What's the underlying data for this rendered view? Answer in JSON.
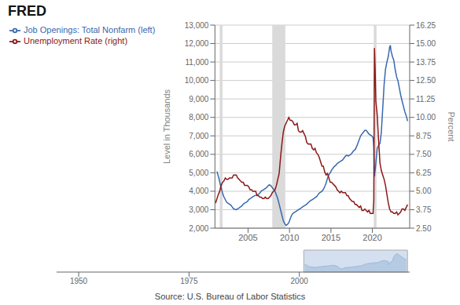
{
  "chart_data": [
    {
      "type": "line",
      "annotations": [
        "FRED",
        "Source: U.S. Bureau of Labor Statistics"
      ],
      "ylabel": "Level in Thousands",
      "y2label": "Percent",
      "xlim": [
        2001.0,
        2024.5
      ],
      "xticks": [
        2005,
        2010,
        2015,
        2020
      ],
      "ylim": [
        2000,
        13000
      ],
      "yticks": [
        {
          "value": 2000,
          "label": "2,000"
        },
        {
          "value": 3000,
          "label": "3,000"
        },
        {
          "value": 4000,
          "label": "4,000"
        },
        {
          "value": 5000,
          "label": "5,000"
        },
        {
          "value": 6000,
          "label": "6,000"
        },
        {
          "value": 7000,
          "label": "7,000"
        },
        {
          "value": 8000,
          "label": "8,000"
        },
        {
          "value": 9000,
          "label": "9,000"
        },
        {
          "value": 10000,
          "label": "10,000"
        },
        {
          "value": 11000,
          "label": "11,000"
        },
        {
          "value": 12000,
          "label": "12,000"
        },
        {
          "value": 13000,
          "label": "13,000"
        }
      ],
      "y2lim": [
        2.5,
        16.25
      ],
      "y2ticks": [
        {
          "value": 2.5,
          "label": "2.50"
        },
        3.75,
        {
          "value": 5.0,
          "label": "5.00"
        },
        6.25,
        {
          "value": 7.5,
          "label": "7.50"
        },
        8.75,
        {
          "value": 10.0,
          "label": "10.00"
        },
        11.25,
        {
          "value": 12.5,
          "label": "12.50"
        },
        13.75,
        {
          "value": 15.0,
          "label": "15.00"
        },
        16.25
      ],
      "grid": true,
      "legend": "upper left",
      "shaded_ranges": [
        {
          "from": 2001.58,
          "to": 2001.92,
          "color": "#DADADA"
        },
        {
          "from": 2007.92,
          "to": 2009.5,
          "color": "#DADADA"
        },
        {
          "from": 2020.17,
          "to": 2020.5,
          "color": "#DADADA"
        }
      ],
      "series": [
        {
          "name": "Job Openings: Total Nonfarm (left)",
          "color": "#3868B0",
          "x": [
            2001.25,
            2001.42,
            2001.58,
            2001.75,
            2001.92,
            2002.08,
            2002.25,
            2002.42,
            2002.58,
            2002.75,
            2002.92,
            2003.08,
            2003.25,
            2003.42,
            2003.58,
            2003.75,
            2003.92,
            2004.08,
            2004.25,
            2004.42,
            2004.58,
            2004.75,
            2004.92,
            2005.08,
            2005.25,
            2005.42,
            2005.58,
            2005.75,
            2005.92,
            2006.08,
            2006.25,
            2006.42,
            2006.58,
            2006.75,
            2006.92,
            2007.08,
            2007.25,
            2007.42,
            2007.58,
            2007.75,
            2007.92,
            2008.08,
            2008.25,
            2008.42,
            2008.58,
            2008.75,
            2008.92,
            2009.08,
            2009.25,
            2009.42,
            2009.58,
            2009.75,
            2009.92,
            2010.08,
            2010.25,
            2010.42,
            2010.58,
            2010.75,
            2010.92,
            2011.08,
            2011.25,
            2011.42,
            2011.58,
            2011.75,
            2011.92,
            2012.08,
            2012.25,
            2012.42,
            2012.58,
            2012.75,
            2012.92,
            2013.08,
            2013.25,
            2013.42,
            2013.58,
            2013.75,
            2013.92,
            2014.08,
            2014.25,
            2014.42,
            2014.58,
            2014.75,
            2014.92,
            2015.08,
            2015.25,
            2015.42,
            2015.58,
            2015.75,
            2015.92,
            2016.08,
            2016.25,
            2016.42,
            2016.58,
            2016.75,
            2016.92,
            2017.08,
            2017.25,
            2017.42,
            2017.58,
            2017.75,
            2017.92,
            2018.08,
            2018.25,
            2018.42,
            2018.58,
            2018.75,
            2018.92,
            2019.08,
            2019.25,
            2019.42,
            2019.58,
            2019.75,
            2019.92,
            2020.08,
            2020.17,
            2020.25,
            2020.42,
            2020.58,
            2020.75,
            2020.92,
            2021.08,
            2021.25,
            2021.42,
            2021.58,
            2021.75,
            2021.92,
            2022.08,
            2022.17,
            2022.25,
            2022.42,
            2022.58,
            2022.75,
            2022.92,
            2023.08,
            2023.25,
            2023.42,
            2023.58,
            2023.75,
            2023.92,
            2024.08,
            2024.25
          ],
          "values": [
            5067,
            4800,
            4500,
            4200,
            3900,
            3700,
            3550,
            3400,
            3350,
            3300,
            3250,
            3150,
            3050,
            3020,
            3000,
            3050,
            3100,
            3150,
            3200,
            3300,
            3350,
            3400,
            3450,
            3550,
            3600,
            3650,
            3700,
            3750,
            3780,
            3800,
            3830,
            3900,
            4000,
            4050,
            4100,
            4150,
            4200,
            4300,
            4350,
            4300,
            4200,
            4100,
            4000,
            3800,
            3600,
            3300,
            3000,
            2700,
            2400,
            2250,
            2150,
            2200,
            2300,
            2500,
            2700,
            2800,
            2850,
            2900,
            2950,
            3000,
            3050,
            3100,
            3150,
            3200,
            3250,
            3300,
            3380,
            3450,
            3500,
            3550,
            3600,
            3650,
            3700,
            3800,
            3900,
            3950,
            4000,
            4100,
            4250,
            4450,
            4700,
            4900,
            5000,
            5150,
            5250,
            5350,
            5400,
            5500,
            5550,
            5600,
            5650,
            5700,
            5800,
            5900,
            5950,
            5900,
            5950,
            6000,
            6100,
            6200,
            6250,
            6400,
            6600,
            6800,
            7000,
            7100,
            7200,
            7300,
            7300,
            7200,
            7100,
            7050,
            7000,
            6900,
            6400,
            4800,
            5500,
            6300,
            6500,
            6600,
            7200,
            8500,
            9800,
            10600,
            11000,
            11300,
            11800,
            11900,
            11600,
            11300,
            11100,
            10600,
            10200,
            10000,
            9600,
            9200,
            8900,
            8600,
            8300,
            8100,
            7800
          ]
        },
        {
          "name": "Unemployment Rate (right)",
          "color": "#8B1818",
          "axis": "y2",
          "x": [
            2001.08,
            2001.25,
            2001.42,
            2001.58,
            2001.75,
            2001.92,
            2002.08,
            2002.25,
            2002.42,
            2002.58,
            2002.75,
            2002.92,
            2003.08,
            2003.25,
            2003.42,
            2003.58,
            2003.75,
            2003.92,
            2004.08,
            2004.25,
            2004.42,
            2004.58,
            2004.75,
            2004.92,
            2005.08,
            2005.25,
            2005.42,
            2005.58,
            2005.75,
            2005.92,
            2006.08,
            2006.25,
            2006.42,
            2006.58,
            2006.75,
            2006.92,
            2007.08,
            2007.25,
            2007.42,
            2007.58,
            2007.75,
            2007.92,
            2008.08,
            2008.25,
            2008.42,
            2008.58,
            2008.75,
            2008.92,
            2009.08,
            2009.25,
            2009.42,
            2009.58,
            2009.75,
            2009.92,
            2010.08,
            2010.25,
            2010.42,
            2010.58,
            2010.75,
            2010.92,
            2011.08,
            2011.25,
            2011.42,
            2011.58,
            2011.75,
            2011.92,
            2012.08,
            2012.25,
            2012.42,
            2012.58,
            2012.75,
            2012.92,
            2013.08,
            2013.25,
            2013.42,
            2013.58,
            2013.75,
            2013.92,
            2014.08,
            2014.25,
            2014.42,
            2014.58,
            2014.75,
            2014.92,
            2015.08,
            2015.25,
            2015.42,
            2015.58,
            2015.75,
            2015.92,
            2016.08,
            2016.25,
            2016.42,
            2016.58,
            2016.75,
            2016.92,
            2017.08,
            2017.25,
            2017.42,
            2017.58,
            2017.75,
            2017.92,
            2018.08,
            2018.25,
            2018.42,
            2018.58,
            2018.75,
            2018.92,
            2019.08,
            2019.25,
            2019.42,
            2019.58,
            2019.75,
            2019.92,
            2020.08,
            2020.17,
            2020.25,
            2020.33,
            2020.42,
            2020.58,
            2020.75,
            2020.92,
            2021.08,
            2021.25,
            2021.42,
            2021.58,
            2021.75,
            2021.92,
            2022.08,
            2022.25,
            2022.42,
            2022.58,
            2022.75,
            2022.92,
            2023.08,
            2023.25,
            2023.42,
            2023.58,
            2023.75,
            2023.92,
            2024.08,
            2024.25
          ],
          "values": [
            4.2,
            4.5,
            4.8,
            5.0,
            5.4,
            5.6,
            5.7,
            5.9,
            5.8,
            5.8,
            5.9,
            5.9,
            5.9,
            6.1,
            6.1,
            6.1,
            5.9,
            5.8,
            5.7,
            5.6,
            5.6,
            5.4,
            5.4,
            5.4,
            5.3,
            5.1,
            5.1,
            5.0,
            5.0,
            5.0,
            4.7,
            4.7,
            4.6,
            4.6,
            4.5,
            4.5,
            4.6,
            4.5,
            4.5,
            4.6,
            4.7,
            4.9,
            5.0,
            5.1,
            5.4,
            5.8,
            6.2,
            7.3,
            8.2,
            9.0,
            9.4,
            9.6,
            9.8,
            10.0,
            9.8,
            9.8,
            9.7,
            9.5,
            9.5,
            9.6,
            9.1,
            9.0,
            9.0,
            9.1,
            8.9,
            8.7,
            8.3,
            8.2,
            8.2,
            8.2,
            7.9,
            7.8,
            7.9,
            7.6,
            7.5,
            7.3,
            7.0,
            6.7,
            6.7,
            6.3,
            6.1,
            6.2,
            5.9,
            5.6,
            5.6,
            5.5,
            5.4,
            5.3,
            5.1,
            5.0,
            4.9,
            5.0,
            4.9,
            4.9,
            4.9,
            4.7,
            4.7,
            4.5,
            4.4,
            4.3,
            4.3,
            4.1,
            4.1,
            4.0,
            3.9,
            4.0,
            3.7,
            3.7,
            3.8,
            3.7,
            3.6,
            3.7,
            3.5,
            3.5,
            3.5,
            4.4,
            14.7,
            13.3,
            11.1,
            10.2,
            8.4,
            6.9,
            6.4,
            6.1,
            5.8,
            5.4,
            4.8,
            4.2,
            3.8,
            3.6,
            3.6,
            3.5,
            3.5,
            3.6,
            3.4,
            3.5,
            3.6,
            3.8,
            3.8,
            3.7,
            3.9,
            4.1
          ]
        }
      ]
    },
    {
      "type": "area",
      "color": "#9AB8D8",
      "xlim": [
        1945,
        2025
      ],
      "xticks": [
        1950,
        1975,
        2000
      ],
      "ylim": [
        0,
        14000
      ],
      "tick_labels": "x",
      "shaded_ranges": [
        {
          "from": 2001.0,
          "to": 2024.5,
          "color": "#B8CCE4"
        }
      ],
      "x": [
        2001.25,
        2001.42,
        2001.58,
        2001.75,
        2001.92,
        2002.08,
        2002.25,
        2002.42,
        2002.58,
        2002.75,
        2002.92,
        2003.08,
        2003.25,
        2003.42,
        2003.58,
        2003.75,
        2003.92,
        2004.08,
        2004.25,
        2004.42,
        2004.58,
        2004.75,
        2004.92,
        2005.08,
        2005.25,
        2005.42,
        2005.58,
        2005.75,
        2005.92,
        2006.08,
        2006.25,
        2006.42,
        2006.58,
        2006.75,
        2006.92,
        2007.08,
        2007.25,
        2007.42,
        2007.58,
        2007.75,
        2007.92,
        2008.08,
        2008.25,
        2008.42,
        2008.58,
        2008.75,
        2008.92,
        2009.08,
        2009.25,
        2009.42,
        2009.58,
        2009.75,
        2009.92,
        2010.08,
        2010.25,
        2010.42,
        2010.58,
        2010.75,
        2010.92,
        2011.08,
        2011.25,
        2011.42,
        2011.58,
        2011.75,
        2011.92,
        2012.08,
        2012.25,
        2012.42,
        2012.58,
        2012.75,
        2012.92,
        2013.08,
        2013.25,
        2013.42,
        2013.58,
        2013.75,
        2013.92,
        2014.08,
        2014.25,
        2014.42,
        2014.58,
        2014.75,
        2014.92,
        2015.08,
        2015.25,
        2015.42,
        2015.58,
        2015.75,
        2015.92,
        2016.08,
        2016.25,
        2016.42,
        2016.58,
        2016.75,
        2016.92,
        2017.08,
        2017.25,
        2017.42,
        2017.58,
        2017.75,
        2017.92,
        2018.08,
        2018.25,
        2018.42,
        2018.58,
        2018.75,
        2018.92,
        2019.08,
        2019.25,
        2019.42,
        2019.58,
        2019.75,
        2019.92,
        2020.08,
        2020.17,
        2020.25,
        2020.42,
        2020.58,
        2020.75,
        2020.92,
        2021.08,
        2021.25,
        2021.42,
        2021.58,
        2021.75,
        2021.92,
        2022.08,
        2022.17,
        2022.25,
        2022.42,
        2022.58,
        2022.75,
        2022.92,
        2023.08,
        2023.25,
        2023.42,
        2023.58,
        2023.75,
        2023.92,
        2024.08,
        2024.25
      ],
      "values": [
        5067,
        4800,
        4500,
        4200,
        3900,
        3700,
        3550,
        3400,
        3350,
        3300,
        3250,
        3150,
        3050,
        3020,
        3000,
        3050,
        3100,
        3150,
        3200,
        3300,
        3350,
        3400,
        3450,
        3550,
        3600,
        3650,
        3700,
        3750,
        3780,
        3800,
        3830,
        3900,
        4000,
        4050,
        4100,
        4150,
        4200,
        4300,
        4350,
        4300,
        4200,
        4100,
        4000,
        3800,
        3600,
        3300,
        3000,
        2700,
        2400,
        2250,
        2150,
        2200,
        2300,
        2500,
        2700,
        2800,
        2850,
        2900,
        2950,
        3000,
        3050,
        3100,
        3150,
        3200,
        3250,
        3300,
        3380,
        3450,
        3500,
        3550,
        3600,
        3650,
        3700,
        3800,
        3900,
        3950,
        4000,
        4100,
        4250,
        4450,
        4700,
        4900,
        5000,
        5150,
        5250,
        5350,
        5400,
        5500,
        5550,
        5600,
        5650,
        5700,
        5800,
        5900,
        5950,
        5900,
        5950,
        6000,
        6100,
        6200,
        6250,
        6400,
        6600,
        6800,
        7000,
        7100,
        7200,
        7300,
        7300,
        7200,
        7100,
        7050,
        7000,
        6900,
        6400,
        4800,
        5500,
        6300,
        6500,
        6600,
        7200,
        8500,
        9800,
        10600,
        11000,
        11300,
        11800,
        11900,
        11600,
        11300,
        11100,
        10600,
        10200,
        10000,
        9600,
        9200,
        8900,
        8600,
        8300,
        8100,
        7800
      ]
    }
  ]
}
